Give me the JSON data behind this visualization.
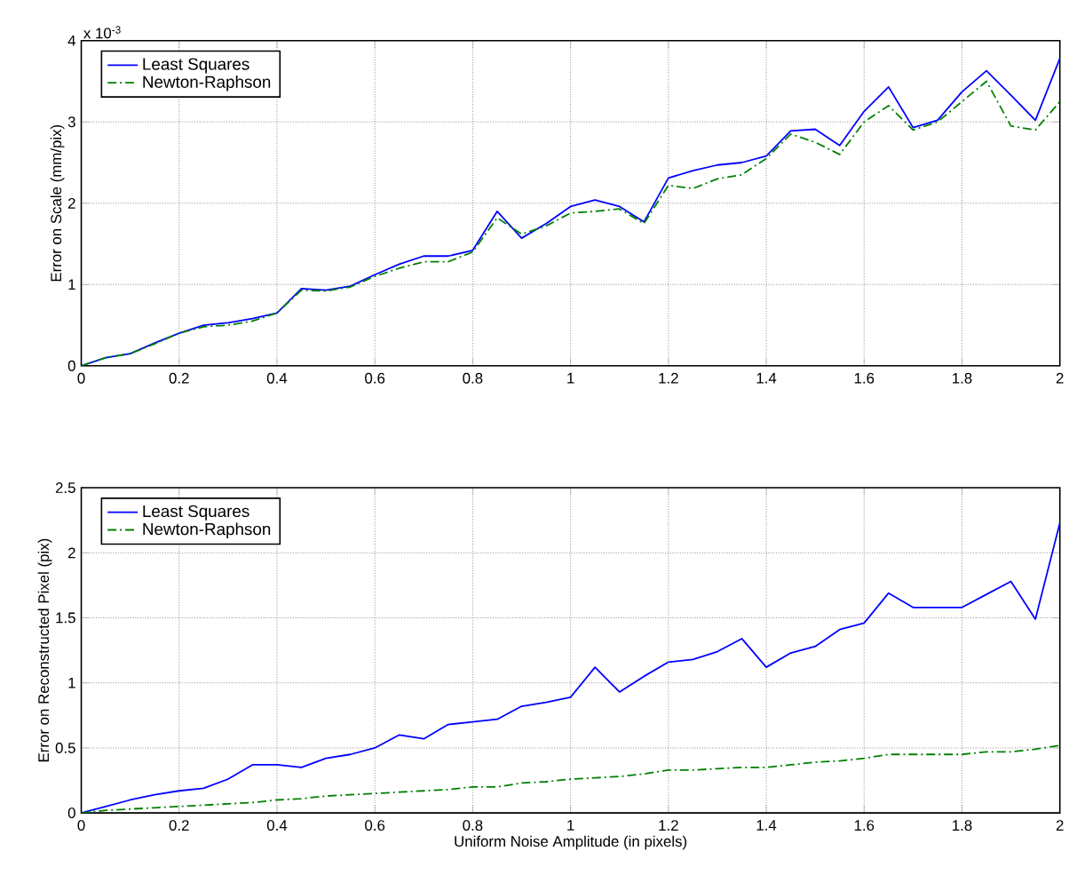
{
  "chart_data": [
    {
      "type": "line",
      "ylabel": "Error on Scale (mm/pix)",
      "annotations": [
        "x 10$^{-3}$"
      ],
      "x": [
        0,
        0.05,
        0.1,
        0.15,
        0.2,
        0.25,
        0.3,
        0.35,
        0.4,
        0.45,
        0.5,
        0.55,
        0.6,
        0.65,
        0.7,
        0.75,
        0.8,
        0.85,
        0.9,
        0.95,
        1,
        1.05,
        1.1,
        1.15,
        1.2,
        1.25,
        1.3,
        1.35,
        1.4,
        1.45,
        1.5,
        1.55,
        1.6,
        1.65,
        1.7,
        1.75,
        1.8,
        1.85,
        1.9,
        1.95,
        2
      ],
      "series": [
        {
          "name": "Least Squares",
          "color": "#0000ff",
          "line_style": "solid",
          "values": [
            0,
            0.1,
            0.15,
            0.28,
            0.4,
            0.5,
            0.53,
            0.58,
            0.65,
            0.95,
            0.93,
            0.98,
            1.12,
            1.25,
            1.35,
            1.35,
            1.42,
            1.9,
            1.57,
            1.75,
            1.96,
            2.04,
            1.96,
            1.77,
            2.31,
            2.4,
            2.47,
            2.5,
            2.58,
            2.89,
            2.91,
            2.71,
            3.13,
            3.43,
            2.93,
            3.02,
            3.37,
            3.63,
            3.33,
            3.02,
            3.78
          ]
        },
        {
          "name": "Newton-Raphson",
          "color": "#008000",
          "line_style": "dashdot",
          "values": [
            0,
            0.1,
            0.15,
            0.27,
            0.4,
            0.48,
            0.5,
            0.55,
            0.65,
            0.93,
            0.92,
            0.97,
            1.1,
            1.2,
            1.28,
            1.28,
            1.4,
            1.82,
            1.62,
            1.72,
            1.88,
            1.9,
            1.93,
            1.75,
            2.22,
            2.18,
            2.3,
            2.35,
            2.55,
            2.85,
            2.75,
            2.6,
            3.0,
            3.2,
            2.9,
            3.0,
            3.25,
            3.5,
            2.95,
            2.9,
            3.25
          ]
        }
      ],
      "xlim": [
        0,
        2
      ],
      "ylim": [
        0,
        4
      ],
      "xticks": [
        0,
        0.2,
        0.4,
        0.6,
        0.8,
        1,
        1.2,
        1.4,
        1.6,
        1.8,
        2
      ],
      "yticks": [
        0,
        1,
        2,
        3,
        4
      ],
      "grid": true,
      "legend": "top left",
      "marker": "none"
    },
    {
      "type": "line",
      "xlabel": "Uniform Noise Amplitude (in pixels)",
      "ylabel": "Error on Reconstructed Pixel (pix)",
      "x": [
        0,
        0.05,
        0.1,
        0.15,
        0.2,
        0.25,
        0.3,
        0.35,
        0.4,
        0.45,
        0.5,
        0.55,
        0.6,
        0.65,
        0.7,
        0.75,
        0.8,
        0.85,
        0.9,
        0.95,
        1,
        1.05,
        1.1,
        1.15,
        1.2,
        1.25,
        1.3,
        1.35,
        1.4,
        1.45,
        1.5,
        1.55,
        1.6,
        1.65,
        1.7,
        1.75,
        1.8,
        1.85,
        1.9,
        1.95,
        2
      ],
      "series": [
        {
          "name": "Least Squares",
          "color": "#0000ff",
          "line_style": "solid",
          "values": [
            0,
            0.05,
            0.1,
            0.14,
            0.17,
            0.19,
            0.26,
            0.37,
            0.37,
            0.35,
            0.42,
            0.45,
            0.5,
            0.6,
            0.57,
            0.68,
            0.7,
            0.72,
            0.82,
            0.85,
            0.89,
            1.12,
            0.93,
            1.05,
            1.16,
            1.18,
            1.24,
            1.34,
            1.12,
            1.23,
            1.28,
            1.41,
            1.46,
            1.69,
            1.58,
            1.58,
            1.58,
            1.68,
            1.78,
            1.49,
            2.23
          ]
        },
        {
          "name": "Newton-Raphson",
          "color": "#008000",
          "line_style": "dashdot",
          "values": [
            0,
            0.02,
            0.03,
            0.04,
            0.05,
            0.06,
            0.07,
            0.08,
            0.1,
            0.11,
            0.13,
            0.14,
            0.15,
            0.16,
            0.17,
            0.18,
            0.2,
            0.2,
            0.23,
            0.24,
            0.26,
            0.27,
            0.28,
            0.3,
            0.33,
            0.33,
            0.34,
            0.35,
            0.35,
            0.37,
            0.39,
            0.4,
            0.42,
            0.45,
            0.45,
            0.45,
            0.45,
            0.47,
            0.47,
            0.49,
            0.52
          ]
        }
      ],
      "xlim": [
        0,
        2
      ],
      "ylim": [
        0,
        2.5
      ],
      "xticks": [
        0,
        0.2,
        0.4,
        0.6,
        0.8,
        1,
        1.2,
        1.4,
        1.6,
        1.8,
        2
      ],
      "yticks": [
        0,
        0.5,
        1,
        1.5,
        2,
        2.5
      ],
      "grid": true,
      "legend": "top left",
      "marker": "none"
    }
  ]
}
